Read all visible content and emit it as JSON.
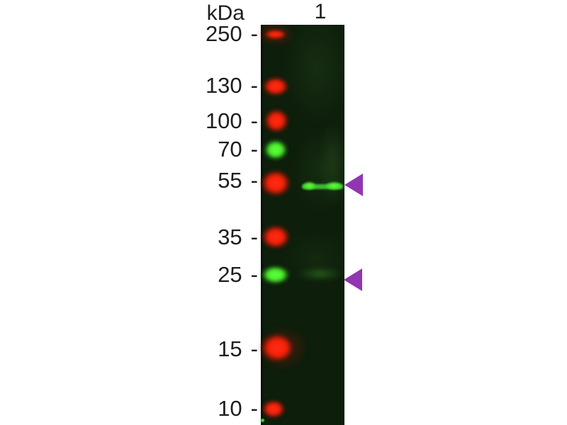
{
  "unit_label": "kDa",
  "lane": {
    "label": "1"
  },
  "marker_dash": "-",
  "markers": [
    {
      "kda": "250"
    },
    {
      "kda": "130"
    },
    {
      "kda": "100"
    },
    {
      "kda": "70"
    },
    {
      "kda": "55"
    },
    {
      "kda": "35"
    },
    {
      "kda": "25"
    },
    {
      "kda": "15"
    },
    {
      "kda": "10"
    }
  ],
  "ladder_bands": [
    {
      "kda": "250",
      "color": "red"
    },
    {
      "kda": "130",
      "color": "red"
    },
    {
      "kda": "100",
      "color": "red"
    },
    {
      "kda": "70",
      "color": "green"
    },
    {
      "kda": "55",
      "color": "red"
    },
    {
      "kda": "35",
      "color": "red"
    },
    {
      "kda": "25",
      "color": "green"
    },
    {
      "kda": "15",
      "color": "red"
    },
    {
      "kda": "10",
      "color": "red"
    }
  ],
  "sample_bands": [
    {
      "lane": "1",
      "kda": "55",
      "color": "green",
      "intensity": "strong"
    },
    {
      "lane": "1",
      "kda": "25",
      "color": "green",
      "intensity": "faint"
    }
  ],
  "arrows": [
    {
      "points_to_kda": "55",
      "color": "purple"
    },
    {
      "points_to_kda": "25",
      "color": "purple"
    }
  ],
  "palette": {
    "band_red": "#f42109",
    "band_green": "#4aef2c",
    "arrow_purple": "#9136b2",
    "strip_background": "#0d1e0b",
    "text_color": "#1e1e1e",
    "page_background": "#ffffff"
  }
}
